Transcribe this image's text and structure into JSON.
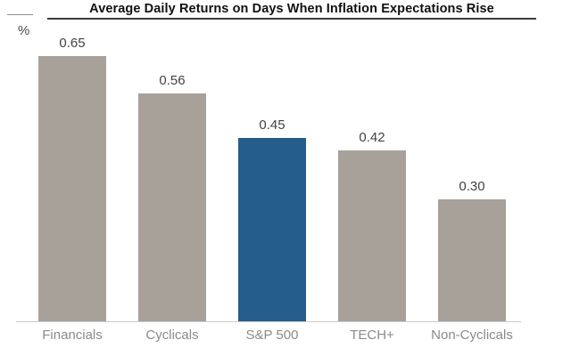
{
  "title": "Average Daily Returns on Days When Inflation Expectations Rise",
  "unit_label": "%",
  "chart_data": {
    "type": "bar",
    "title": "Average Daily Returns on Days When Inflation Expectations Rise",
    "categories": [
      "Financials",
      "Cyclicals",
      "S&P 500",
      "TECH+",
      "Non-Cyclicals"
    ],
    "values": [
      0.65,
      0.56,
      0.45,
      0.42,
      0.3
    ],
    "value_labels": [
      "0.65",
      "0.56",
      "0.45",
      "0.42",
      "0.30"
    ],
    "highlight_category": "S&P 500",
    "xlabel": "",
    "ylabel": "%",
    "ylim": [
      0,
      0.7
    ],
    "grid": false,
    "legend": false,
    "bar_data_labels_position": "above"
  },
  "colors": {
    "bar_default": "#a8a19a",
    "bar_highlight": "#255d8c",
    "value_label": "#424242",
    "category_label": "#8a8a8a",
    "axis_line": "#cbcbcb",
    "title": "#111111",
    "underline": "#3b3b3b"
  }
}
